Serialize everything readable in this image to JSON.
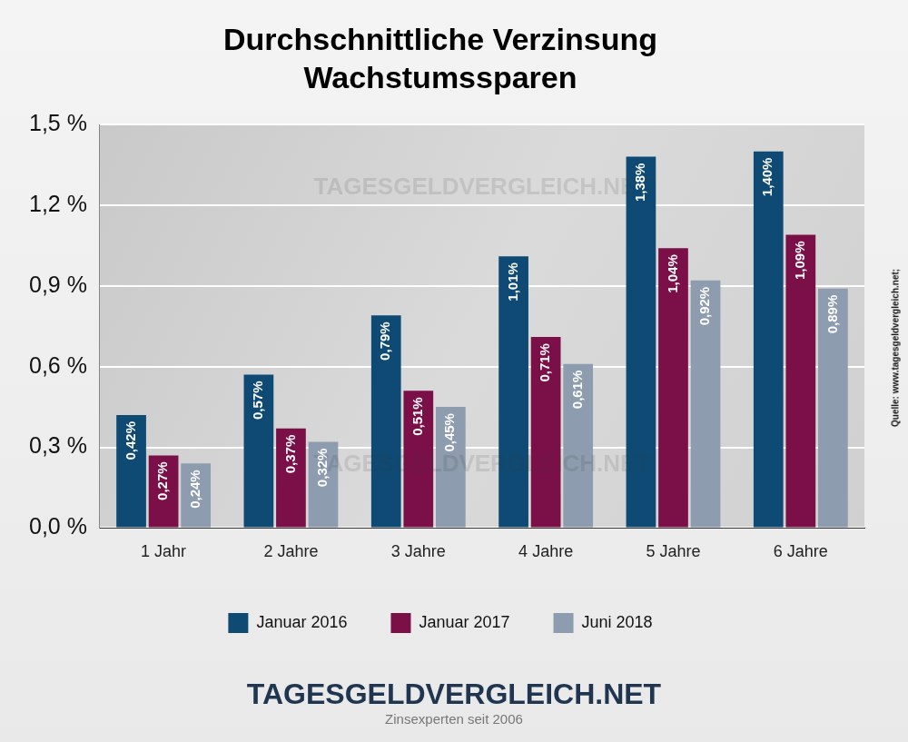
{
  "chart_data": {
    "type": "bar",
    "title": [
      "Durchschnittliche Verzinsung",
      "Wachstumssparen"
    ],
    "categories": [
      "1 Jahr",
      "2 Jahre",
      "3 Jahre",
      "4 Jahre",
      "5 Jahre",
      "6 Jahre"
    ],
    "series": [
      {
        "name": "Januar 2016",
        "color": "#0e4a74",
        "values": [
          0.42,
          0.57,
          0.79,
          1.01,
          1.38,
          1.4
        ],
        "value_labels": [
          "0,42%",
          "0,57%",
          "0,79%",
          "1,01%",
          "1,38%",
          "1,40%"
        ]
      },
      {
        "name": "Januar 2017",
        "color": "#7b1049",
        "values": [
          0.27,
          0.37,
          0.51,
          0.71,
          1.04,
          1.09
        ],
        "value_labels": [
          "0,27%",
          "0,37%",
          "0,51%",
          "0,71%",
          "1,04%",
          "1,09%"
        ]
      },
      {
        "name": "Juni 2018",
        "color": "#8d9cae",
        "values": [
          0.24,
          0.32,
          0.45,
          0.61,
          0.92,
          0.89
        ],
        "value_labels": [
          "0,24%",
          "0,32%",
          "0,45%",
          "0,61%",
          "0,92%",
          "0,89%"
        ]
      }
    ],
    "ylim": [
      0,
      1.5
    ],
    "yticks": [
      {
        "value": 0,
        "label": "0,0 %"
      },
      {
        "value": 0.3,
        "label": "0,3 %"
      },
      {
        "value": 0.6,
        "label": "0,6 %"
      },
      {
        "value": 0.9,
        "label": "0,9 %"
      },
      {
        "value": 1.2,
        "label": "1,2 %"
      },
      {
        "value": 1.5,
        "label": "1,5 %"
      }
    ],
    "grid": true,
    "legend": "bottom",
    "data_labels": true,
    "annotations": [
      "TAGESGELDVERGLEICH.NET",
      "Zinsexperten seit 2006",
      "Quelle: www.tagesgeldvergleich.net;"
    ]
  }
}
